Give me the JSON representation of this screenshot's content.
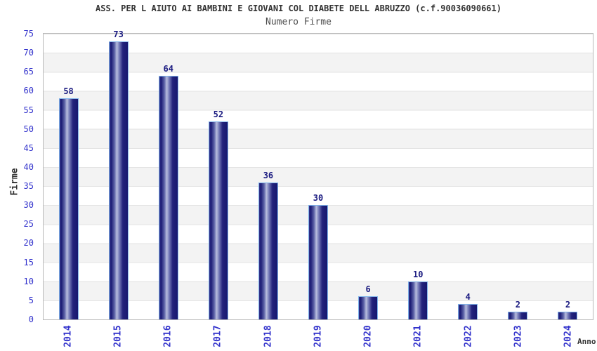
{
  "header": {
    "title": "ASS. PER L AIUTO AI BAMBINI E GIOVANI COL DIABETE DELL ABRUZZO (c.f.90036090661)",
    "subtitle": "Numero Firme"
  },
  "chart_data": {
    "type": "bar",
    "title": "ASS. PER L AIUTO AI BAMBINI E GIOVANI COL DIABETE DELL ABRUZZO (c.f.90036090661)",
    "subtitle": "Numero Firme",
    "xlabel": "Anno",
    "ylabel": "Firme",
    "categories": [
      "2014",
      "2015",
      "2016",
      "2017",
      "2018",
      "2019",
      "2020",
      "2021",
      "2022",
      "2023",
      "2024"
    ],
    "values": [
      58,
      73,
      64,
      52,
      36,
      30,
      6,
      10,
      4,
      2,
      2
    ],
    "ylim": [
      0,
      75
    ],
    "y_ticks": [
      0,
      5,
      10,
      15,
      20,
      25,
      30,
      35,
      40,
      45,
      50,
      55,
      60,
      65,
      70,
      75
    ],
    "grid": "horizontal-bands",
    "legend_position": "none",
    "colors": {
      "bar_dark": "#191970",
      "bar_highlight": "#b9bede",
      "bar_border": "#7fb3ea",
      "tick_text": "#3333cc",
      "value_label_text": "#1a1a80",
      "band": "#f3f3f3",
      "gridline": "#e3e3e3",
      "title_text": "#333333"
    }
  }
}
